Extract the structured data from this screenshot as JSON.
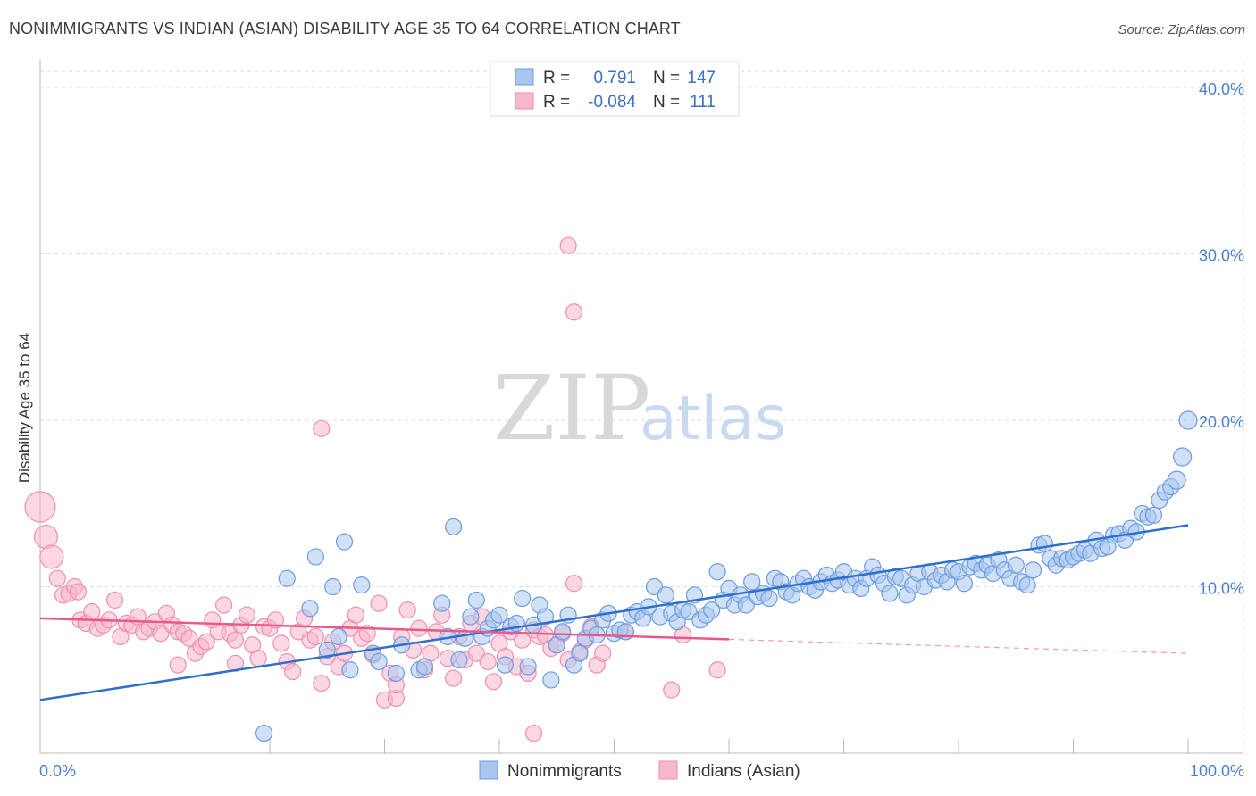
{
  "header": {
    "title": "NONIMMIGRANTS VS INDIAN (ASIAN) DISABILITY AGE 35 TO 64 CORRELATION CHART",
    "source": "Source: ZipAtlas.com"
  },
  "watermark": {
    "zip": "ZIP",
    "atlas": "atlas"
  },
  "legend": {
    "rows": [
      {
        "r_label": "R =",
        "r_value": "0.791",
        "n_label": "N =",
        "n_value": "147",
        "color": "#6b9be0"
      },
      {
        "r_label": "R =",
        "r_value": "-0.084",
        "n_label": "N =",
        "n_value": "111",
        "color": "#ef8fb0"
      }
    ]
  },
  "bottom_legend": {
    "items": [
      "Nonimmigrants",
      "Indians (Asian)"
    ]
  },
  "colors": {
    "blue_fill": "#a9c6ef",
    "blue_stroke": "#6b9be0",
    "blue_line": "#2e6fcc",
    "pink_fill": "#f6b7cb",
    "pink_stroke": "#ef8fb0",
    "pink_line": "#e8588a",
    "grid": "#dddddd",
    "axis_text": "#4a7fd0"
  },
  "chart_data": {
    "type": "scatter",
    "title": "NONIMMIGRANTS VS INDIAN (ASIAN) DISABILITY AGE 35 TO 64 CORRELATION CHART",
    "xlabel": "",
    "ylabel": "Disability Age 35 to 64",
    "xlim": [
      0,
      100
    ],
    "ylim": [
      0,
      40
    ],
    "x_tick_labels": [
      "0.0%",
      "100.0%"
    ],
    "y_ticks": [
      10,
      20,
      30,
      40
    ],
    "y_tick_labels": [
      "10.0%",
      "20.0%",
      "30.0%",
      "40.0%"
    ],
    "grid": true,
    "legend_position": "top-center",
    "series": [
      {
        "name": "Nonimmigrants",
        "r": 0.791,
        "n": 147,
        "trend": {
          "x": [
            0,
            100
          ],
          "y": [
            3.2,
            13.7
          ],
          "dashed_from": null
        },
        "points": [
          [
            19.5,
            1.2
          ],
          [
            21.5,
            10.5
          ],
          [
            23.5,
            8.7
          ],
          [
            24,
            11.8
          ],
          [
            25,
            6.2
          ],
          [
            25.5,
            10
          ],
          [
            26,
            7
          ],
          [
            26.5,
            12.7
          ],
          [
            27,
            5
          ],
          [
            28,
            10.1
          ],
          [
            29,
            6
          ],
          [
            29.5,
            5.5
          ],
          [
            31,
            4.8
          ],
          [
            31.5,
            6.5
          ],
          [
            33,
            5
          ],
          [
            33.5,
            5.2
          ],
          [
            35,
            9
          ],
          [
            35.5,
            7
          ],
          [
            36,
            13.6
          ],
          [
            36.5,
            5.6
          ],
          [
            37,
            6.9
          ],
          [
            37.5,
            8.2
          ],
          [
            38,
            9.2
          ],
          [
            38.5,
            7
          ],
          [
            39,
            7.5
          ],
          [
            39.5,
            8
          ],
          [
            40,
            8.3
          ],
          [
            40.5,
            5.3
          ],
          [
            41,
            7.6
          ],
          [
            41.5,
            7.8
          ],
          [
            42,
            9.3
          ],
          [
            42.5,
            5.2
          ],
          [
            43,
            7.7
          ],
          [
            43.5,
            8.9
          ],
          [
            44,
            8.2
          ],
          [
            44.5,
            4.4
          ],
          [
            45,
            6.5
          ],
          [
            45.5,
            7.3
          ],
          [
            46,
            8.3
          ],
          [
            46.5,
            5.3
          ],
          [
            47,
            6
          ],
          [
            47.5,
            6.9
          ],
          [
            48,
            7.5
          ],
          [
            48.5,
            7.1
          ],
          [
            49,
            8
          ],
          [
            49.5,
            8.4
          ],
          [
            50,
            7.2
          ],
          [
            50.5,
            7.4
          ],
          [
            51,
            7.3
          ],
          [
            51.5,
            8.3
          ],
          [
            52,
            8.5
          ],
          [
            52.5,
            8.1
          ],
          [
            53,
            8.8
          ],
          [
            53.5,
            10
          ],
          [
            54,
            8.2
          ],
          [
            54.5,
            9.5
          ],
          [
            55,
            8.4
          ],
          [
            55.5,
            7.9
          ],
          [
            56,
            8.6
          ],
          [
            56.5,
            8.5
          ],
          [
            57,
            9.5
          ],
          [
            57.5,
            8
          ],
          [
            58,
            8.3
          ],
          [
            58.5,
            8.6
          ],
          [
            59,
            10.9
          ],
          [
            59.5,
            9.2
          ],
          [
            60,
            9.9
          ],
          [
            60.5,
            8.9
          ],
          [
            61,
            9.5
          ],
          [
            61.5,
            8.9
          ],
          [
            62,
            10.3
          ],
          [
            62.5,
            9.4
          ],
          [
            63,
            9.6
          ],
          [
            63.5,
            9.3
          ],
          [
            64,
            10.5
          ],
          [
            64.5,
            10.3
          ],
          [
            65,
            9.7
          ],
          [
            65.5,
            9.5
          ],
          [
            66,
            10.2
          ],
          [
            66.5,
            10.5
          ],
          [
            67,
            10
          ],
          [
            67.5,
            9.8
          ],
          [
            68,
            10.3
          ],
          [
            68.5,
            10.7
          ],
          [
            69,
            10.2
          ],
          [
            69.5,
            10.4
          ],
          [
            70,
            10.9
          ],
          [
            70.5,
            10.1
          ],
          [
            71,
            10.5
          ],
          [
            71.5,
            9.9
          ],
          [
            72,
            10.5
          ],
          [
            72.5,
            11.2
          ],
          [
            73,
            10.7
          ],
          [
            73.5,
            10.2
          ],
          [
            74,
            9.6
          ],
          [
            74.5,
            10.6
          ],
          [
            75,
            10.5
          ],
          [
            75.5,
            9.5
          ],
          [
            76,
            10.1
          ],
          [
            76.5,
            10.8
          ],
          [
            77,
            10
          ],
          [
            77.5,
            10.9
          ],
          [
            78,
            10.4
          ],
          [
            78.5,
            10.7
          ],
          [
            79,
            10.3
          ],
          [
            79.5,
            11
          ],
          [
            80,
            10.9
          ],
          [
            80.5,
            10.2
          ],
          [
            81,
            11.2
          ],
          [
            81.5,
            11.4
          ],
          [
            82,
            11
          ],
          [
            82.5,
            11.3
          ],
          [
            83,
            10.8
          ],
          [
            83.5,
            11.6
          ],
          [
            84,
            11
          ],
          [
            84.5,
            10.5
          ],
          [
            85,
            11.3
          ],
          [
            85.5,
            10.3
          ],
          [
            86,
            10.1
          ],
          [
            86.5,
            11
          ],
          [
            87,
            12.5
          ],
          [
            87.5,
            12.6
          ],
          [
            88,
            11.7
          ],
          [
            88.5,
            11.3
          ],
          [
            89,
            11.7
          ],
          [
            89.5,
            11.6
          ],
          [
            90,
            11.8
          ],
          [
            90.5,
            12
          ],
          [
            91,
            12.2
          ],
          [
            91.5,
            12
          ],
          [
            92,
            12.8
          ],
          [
            92.5,
            12.3
          ],
          [
            93,
            12.4
          ],
          [
            93.5,
            13.1
          ],
          [
            94,
            13.2
          ],
          [
            94.5,
            12.8
          ],
          [
            95,
            13.5
          ],
          [
            95.5,
            13.3
          ],
          [
            96,
            14.4
          ],
          [
            96.5,
            14.2
          ],
          [
            97,
            14.3
          ],
          [
            97.5,
            15.2
          ],
          [
            98,
            15.7
          ],
          [
            98.5,
            16
          ],
          [
            99,
            16.4
          ],
          [
            99.5,
            17.8
          ],
          [
            100,
            20
          ]
        ]
      },
      {
        "name": "Indians (Asian)",
        "r": -0.084,
        "n": 111,
        "trend": {
          "x": [
            0,
            100
          ],
          "y": [
            8.1,
            6.0
          ],
          "dashed_from": 60
        },
        "points": [
          [
            0,
            14.8
          ],
          [
            0.5,
            13
          ],
          [
            1,
            11.8
          ],
          [
            1.5,
            10.5
          ],
          [
            2,
            9.5
          ],
          [
            2.5,
            9.6
          ],
          [
            3,
            10
          ],
          [
            3.3,
            9.7
          ],
          [
            3.5,
            8
          ],
          [
            4,
            7.8
          ],
          [
            4.5,
            8.5
          ],
          [
            5,
            7.5
          ],
          [
            5.5,
            7.7
          ],
          [
            6,
            8
          ],
          [
            6.5,
            9.2
          ],
          [
            7,
            7
          ],
          [
            7.5,
            7.8
          ],
          [
            8,
            7.7
          ],
          [
            8.5,
            8.2
          ],
          [
            9,
            7.3
          ],
          [
            9.5,
            7.5
          ],
          [
            10,
            7.9
          ],
          [
            10.5,
            7.2
          ],
          [
            11,
            8.4
          ],
          [
            11.5,
            7.7
          ],
          [
            12,
            7.3
          ],
          [
            12.5,
            7.2
          ],
          [
            13,
            6.9
          ],
          [
            13.5,
            6
          ],
          [
            14,
            6.4
          ],
          [
            14.5,
            6.7
          ],
          [
            15,
            8
          ],
          [
            15.5,
            7.3
          ],
          [
            16,
            8.9
          ],
          [
            16.5,
            7.2
          ],
          [
            17,
            6.8
          ],
          [
            17.5,
            7.7
          ],
          [
            18,
            8.3
          ],
          [
            18.5,
            6.5
          ],
          [
            19,
            5.7
          ],
          [
            19.5,
            7.6
          ],
          [
            20,
            7.5
          ],
          [
            20.5,
            8
          ],
          [
            21,
            6.6
          ],
          [
            21.5,
            5.5
          ],
          [
            22,
            4.9
          ],
          [
            22.5,
            7.3
          ],
          [
            23,
            8.1
          ],
          [
            23.5,
            6.8
          ],
          [
            24,
            7
          ],
          [
            24.5,
            4.2
          ],
          [
            25,
            5.8
          ],
          [
            25.5,
            6.7
          ],
          [
            26,
            5.2
          ],
          [
            26.5,
            6
          ],
          [
            27,
            7.5
          ],
          [
            27.5,
            8.3
          ],
          [
            28,
            6.9
          ],
          [
            28.5,
            7.2
          ],
          [
            29,
            5.9
          ],
          [
            29.5,
            9
          ],
          [
            30,
            3.2
          ],
          [
            30.5,
            4.8
          ],
          [
            31,
            3.3
          ],
          [
            31.5,
            7
          ],
          [
            32,
            8.6
          ],
          [
            32.5,
            6.2
          ],
          [
            33,
            7.5
          ],
          [
            33.5,
            5
          ],
          [
            34,
            6
          ],
          [
            34.5,
            7.3
          ],
          [
            35,
            8.3
          ],
          [
            35.5,
            5.7
          ],
          [
            36,
            4.5
          ],
          [
            36.5,
            7
          ],
          [
            37,
            5.6
          ],
          [
            37.5,
            7.8
          ],
          [
            38,
            6
          ],
          [
            38.5,
            8.2
          ],
          [
            39,
            5.5
          ],
          [
            39.5,
            4.3
          ],
          [
            40,
            6.6
          ],
          [
            40.5,
            5.8
          ],
          [
            41,
            7.3
          ],
          [
            41.5,
            5.2
          ],
          [
            42,
            6.8
          ],
          [
            42.5,
            4.8
          ],
          [
            43,
            7.4
          ],
          [
            43.5,
            7
          ],
          [
            44,
            7.1
          ],
          [
            44.5,
            6.3
          ],
          [
            45,
            6.5
          ],
          [
            45.5,
            7.2
          ],
          [
            46,
            5.6
          ],
          [
            46.5,
            10.2
          ],
          [
            47,
            6.1
          ],
          [
            47.5,
            6.8
          ],
          [
            48,
            7.6
          ],
          [
            48.5,
            5.3
          ],
          [
            49,
            6
          ],
          [
            24.5,
            19.5
          ],
          [
            46,
            30.5
          ],
          [
            46.5,
            26.5
          ],
          [
            31,
            4.1
          ],
          [
            43,
            1.2
          ],
          [
            55,
            3.8
          ],
          [
            59,
            5
          ],
          [
            56,
            7.1
          ],
          [
            51,
            7.3
          ],
          [
            17,
            5.4
          ],
          [
            12,
            5.3
          ]
        ]
      }
    ]
  }
}
